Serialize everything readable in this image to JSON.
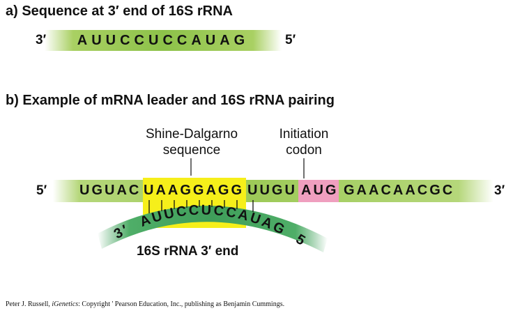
{
  "part_a": {
    "heading": "a) Sequence at 3′ end of 16S rRNA",
    "left_end": "3′",
    "sequence": "AUUCCUCCAUAG",
    "right_end": "5′"
  },
  "part_b": {
    "heading": "b) Example of mRNA leader and 16S rRNA pairing",
    "callout_sd_line1": "Shine-Dalgarno",
    "callout_sd_line2": "sequence",
    "callout_init_line1": "Initiation",
    "callout_init_line2": "codon",
    "mrna": {
      "left_end": "5′",
      "segment_1": "UGUAC",
      "shine_dalgarno": "UAAGGAGG",
      "segment_2": "UUGU",
      "start_codon": "AUG",
      "segment_3": "GAACAACGC",
      "right_end": "3′"
    },
    "rrna": {
      "left_end": "3′",
      "sequence": "AUUCCUCCAUAG",
      "right_end": "5′"
    },
    "caption": "16S rRNA 3′ end"
  },
  "credit": {
    "author": "Peter J. Russell, ",
    "book": "iGenetics",
    "rest": ": Copyright ' Pearson Education, Inc., publishing as Benjamin Cummings."
  },
  "colors": {
    "shine_dalgarno_box": "#f6ef1a",
    "start_codon_box": "#ef9fbf",
    "mrna_bar": "#9dca58",
    "rrna_arc": "#3f9e5a"
  }
}
